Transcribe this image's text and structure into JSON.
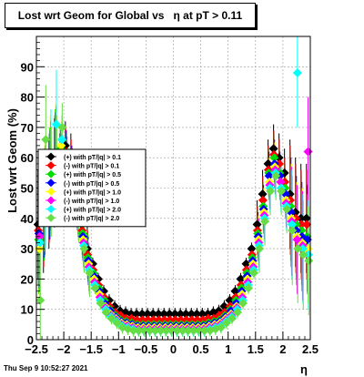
{
  "title": "Lost wrt Geom for Global vs   η at pT > 0.11",
  "footer": "Thu Sep  9 10:52:27 2021",
  "chart_data": {
    "type": "scatter",
    "xlabel": "η",
    "ylabel": "Lost wrt Geom (%)",
    "xlim": [
      -2.5,
      2.5
    ],
    "ylim": [
      0,
      100
    ],
    "xticks": [
      -2.5,
      -2,
      -1.5,
      -1,
      -0.5,
      0,
      0.5,
      1,
      1.5,
      2,
      2.5
    ],
    "xtick_labels": [
      "−2.5",
      "−2",
      "−1.5",
      "−1",
      "−0.5",
      "0",
      "0.5",
      "1",
      "1.5",
      "2",
      "2.5"
    ],
    "yticks": [
      0,
      10,
      20,
      30,
      40,
      50,
      60,
      70,
      80,
      90
    ],
    "grid": true,
    "legend_position": "left-middle",
    "x": [
      -2.45,
      -2.35,
      -2.25,
      -2.15,
      -2.05,
      -1.95,
      -1.85,
      -1.75,
      -1.65,
      -1.55,
      -1.45,
      -1.35,
      -1.25,
      -1.15,
      -1.05,
      -0.95,
      -0.85,
      -0.75,
      -0.65,
      -0.55,
      -0.45,
      -0.35,
      -0.25,
      -0.15,
      -0.05,
      0.05,
      0.15,
      0.25,
      0.35,
      0.45,
      0.55,
      0.65,
      0.75,
      0.85,
      0.95,
      1.05,
      1.15,
      1.25,
      1.35,
      1.45,
      1.55,
      1.65,
      1.75,
      1.85,
      1.95,
      2.05,
      2.15,
      2.25,
      2.35,
      2.45
    ],
    "series": [
      {
        "name": "(+) with pT/|q| > 0.1",
        "color": "#000000",
        "values": [
          38,
          40,
          48,
          55,
          60,
          64,
          60,
          48,
          38,
          30,
          25,
          20,
          16,
          13,
          11,
          9.5,
          9,
          8.5,
          8.5,
          8.5,
          8.5,
          8.5,
          8.5,
          8.5,
          8.5,
          8.5,
          8.5,
          8.5,
          8.5,
          8.5,
          8.5,
          8.5,
          9,
          9.5,
          11,
          13,
          16,
          20,
          25,
          30,
          38,
          48,
          58,
          63,
          60,
          55,
          48,
          42,
          40,
          40
        ]
      },
      {
        "name": "(-) with pT/|q| > 0.1",
        "color": "#ff0000",
        "values": [
          36,
          42,
          50,
          56,
          62,
          62,
          58,
          46,
          36,
          28,
          23,
          18,
          14,
          11,
          9,
          8,
          7,
          7,
          6.5,
          6.5,
          6.5,
          6.5,
          6.5,
          6.5,
          6.5,
          6.5,
          6.5,
          6.5,
          6.5,
          6.5,
          6.5,
          7,
          7,
          8,
          9,
          11,
          14,
          18,
          23,
          28,
          36,
          46,
          56,
          61,
          58,
          52,
          46,
          40,
          38,
          38
        ]
      },
      {
        "name": "(+) with pT/|q| > 0.5",
        "color": "#00dd00",
        "values": [
          33,
          44,
          52,
          58,
          63,
          60,
          55,
          45,
          35,
          27,
          22,
          17,
          13,
          10,
          8,
          6.5,
          6,
          5.5,
          5,
          5,
          5,
          5,
          5,
          5,
          5,
          5,
          5,
          5,
          5,
          5,
          5,
          5.5,
          6,
          6.5,
          8,
          10,
          13,
          17,
          22,
          27,
          35,
          44,
          55,
          60,
          55,
          50,
          44,
          38,
          36,
          34
        ]
      },
      {
        "name": "(-) with pT/|q| > 0.5",
        "color": "#0000ff",
        "values": [
          35,
          45,
          51,
          57,
          61,
          61,
          56,
          44,
          34,
          26,
          21,
          16,
          12,
          9.5,
          7.5,
          6,
          5.5,
          5,
          4.5,
          4.5,
          4.5,
          4.5,
          4.5,
          4.5,
          4.5,
          4.5,
          4.5,
          4.5,
          4.5,
          4.5,
          4.5,
          5,
          5.5,
          6,
          7.5,
          9.5,
          12,
          16,
          21,
          26,
          34,
          43,
          54,
          58,
          54,
          48,
          42,
          36,
          34,
          33
        ]
      },
      {
        "name": "(+) with pT/|q| > 1.0",
        "color": "#ffff00",
        "values": [
          30,
          47,
          56,
          60,
          64,
          58,
          54,
          43,
          33,
          25,
          20,
          15,
          11,
          8.5,
          7,
          5.5,
          5,
          4.5,
          4,
          4,
          4,
          4,
          4,
          4,
          4,
          4,
          4,
          4,
          4,
          4,
          4,
          4.5,
          5,
          5.5,
          7,
          8.5,
          11,
          15,
          20,
          25,
          33,
          42,
          52,
          57,
          52,
          46,
          40,
          34,
          32,
          30
        ]
      },
      {
        "name": "(-) with pT/|q| > 1.0",
        "color": "#ff00ff",
        "values": [
          34,
          46,
          54,
          59,
          60,
          59,
          55,
          42,
          32,
          24,
          19,
          14,
          10.5,
          8,
          6.5,
          5,
          4.5,
          4,
          3.5,
          3.5,
          3.5,
          3.5,
          3.5,
          3.5,
          3.5,
          3.5,
          3.5,
          3.5,
          3.5,
          3.5,
          3.5,
          4,
          4.5,
          5,
          6.5,
          8,
          10.5,
          14,
          19,
          24,
          32,
          41,
          51,
          56,
          52,
          45,
          39,
          33,
          31,
          62
        ]
      },
      {
        "name": "(+) with pT/|q| > 2.0",
        "color": "#00ffff",
        "values": [
          32,
          48,
          58,
          71,
          66,
          57,
          53,
          41,
          31,
          23,
          18,
          13,
          10,
          7.5,
          6,
          4.5,
          4,
          3.5,
          3,
          3,
          3,
          3,
          3,
          3,
          3,
          3,
          3,
          3,
          3,
          3,
          3,
          3.5,
          4,
          4.5,
          6,
          7.5,
          10,
          13,
          18,
          23,
          31,
          40,
          50,
          55,
          50,
          44,
          38,
          88,
          30,
          28
        ]
      },
      {
        "name": "(-) with pT/|q| > 2.0",
        "color": "#66dd44",
        "values": [
          13,
          66,
          52,
          56,
          70,
          56,
          52,
          40,
          30,
          22,
          17,
          12,
          9,
          7,
          5.5,
          4,
          3.5,
          3,
          3,
          3,
          3,
          3,
          3,
          3,
          3,
          3,
          3,
          3,
          3,
          3,
          3,
          3,
          3.5,
          4,
          5.5,
          7,
          9,
          12,
          17,
          22,
          30,
          39,
          49,
          54,
          49,
          43,
          36,
          30,
          28,
          26
        ]
      }
    ]
  }
}
